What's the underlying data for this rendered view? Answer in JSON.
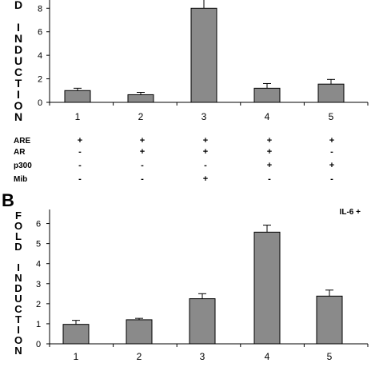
{
  "colors": {
    "bar": "#8a8a8a",
    "bar_edge": "#000000",
    "axis": "#000000"
  },
  "chart_data": [
    {
      "type": "bar",
      "panel": "A",
      "panel_label": "",
      "ylabel_letters": [
        "D",
        "",
        "I",
        "N",
        "D",
        "U",
        "C",
        "T",
        "I",
        "O",
        "N"
      ],
      "categories": [
        "1",
        "2",
        "3",
        "4",
        "5"
      ],
      "values": [
        1.0,
        0.65,
        8.0,
        1.2,
        1.55
      ],
      "errors": [
        0.2,
        0.2,
        1.0,
        0.4,
        0.4
      ],
      "ylim": [
        0,
        8.7
      ],
      "yticks": [
        0,
        2,
        4,
        6,
        8
      ],
      "ytick_labels": [
        "0",
        "2",
        "4",
        "6",
        "8"
      ],
      "annotation": ""
    },
    {
      "type": "bar",
      "panel": "B",
      "panel_label": "B",
      "ylabel_letters": [
        "F",
        "O",
        "L",
        "D",
        "",
        "I",
        "N",
        "D",
        "U",
        "C",
        "T",
        "I",
        "O",
        "N"
      ],
      "categories": [
        "1",
        "2",
        "3",
        "4",
        "5"
      ],
      "values": [
        0.97,
        1.2,
        2.25,
        5.57,
        2.38
      ],
      "errors": [
        0.2,
        0.07,
        0.25,
        0.35,
        0.3
      ],
      "ylim": [
        0,
        6.7
      ],
      "yticks": [
        0,
        1,
        2,
        3,
        4,
        5,
        6
      ],
      "ytick_labels": [
        "0",
        "1",
        "2",
        "3",
        "4",
        "5",
        "6"
      ],
      "annotation": "IL-6 +"
    }
  ],
  "condition_table": {
    "rows": [
      {
        "label": "ARE",
        "marks": [
          "+",
          "+",
          "+",
          "+",
          "+"
        ]
      },
      {
        "label": "AR",
        "marks": [
          "-",
          "+",
          "+",
          "+",
          "-"
        ]
      },
      {
        "label": "p300",
        "marks": [
          "-",
          "-",
          "-",
          "+",
          "+"
        ]
      },
      {
        "label": "Mib",
        "marks": [
          "-",
          "-",
          "+",
          "-",
          "-"
        ]
      }
    ]
  }
}
